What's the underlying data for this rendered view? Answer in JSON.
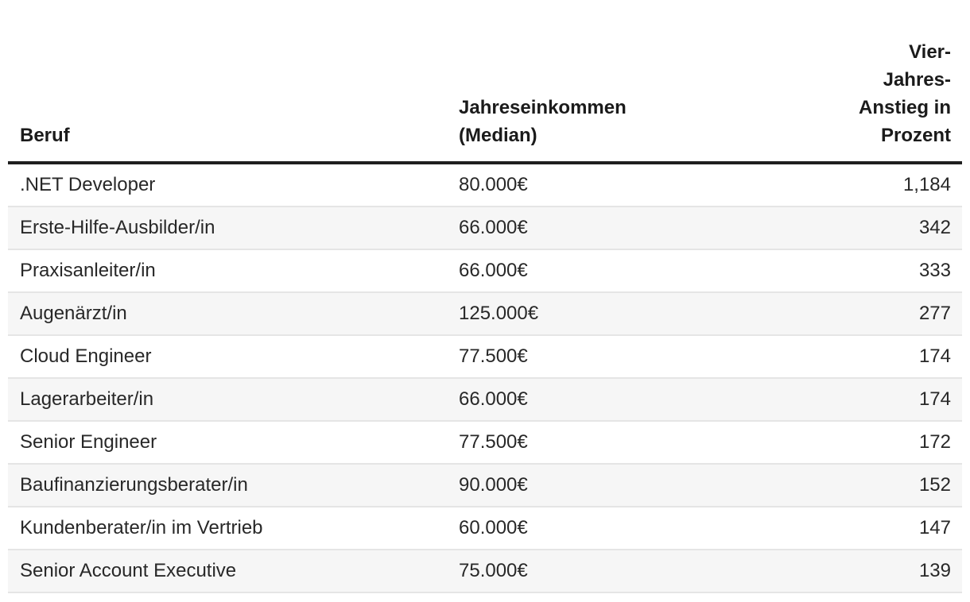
{
  "table": {
    "columns": [
      {
        "id": "beruf",
        "label": "Beruf",
        "align": "left"
      },
      {
        "id": "einkommen",
        "label": "Jahreseinkommen (Median)",
        "align": "left"
      },
      {
        "id": "anstieg",
        "label": "Vier-Jahres-Anstieg in Prozent",
        "align": "right"
      }
    ],
    "rows": [
      {
        "beruf": ".NET Developer",
        "einkommen": "80.000€",
        "anstieg": "1,184"
      },
      {
        "beruf": "Erste-Hilfe-Ausbilder/in",
        "einkommen": "66.000€",
        "anstieg": "342"
      },
      {
        "beruf": "Praxisanleiter/in",
        "einkommen": "66.000€",
        "anstieg": "333"
      },
      {
        "beruf": "Augenärzt/in",
        "einkommen": "125.000€",
        "anstieg": "277"
      },
      {
        "beruf": "Cloud Engineer",
        "einkommen": "77.500€",
        "anstieg": "174"
      },
      {
        "beruf": "Lagerarbeiter/in",
        "einkommen": "66.000€",
        "anstieg": "174"
      },
      {
        "beruf": "Senior Engineer",
        "einkommen": "77.500€",
        "anstieg": "172"
      },
      {
        "beruf": "Baufinanzierungsberater/in",
        "einkommen": "90.000€",
        "anstieg": "152"
      },
      {
        "beruf": "Kundenberater/in im Vertrieb",
        "einkommen": "60.000€",
        "anstieg": "147"
      },
      {
        "beruf": "Senior Account Executive",
        "einkommen": "75.000€",
        "anstieg": "139"
      }
    ]
  },
  "chart_data": {
    "type": "table",
    "columns": [
      "Beruf",
      "Jahreseinkommen (Median)",
      "Vier-Jahres-Anstieg in Prozent"
    ],
    "rows": [
      [
        ".NET Developer",
        "80.000€",
        1184
      ],
      [
        "Erste-Hilfe-Ausbilder/in",
        "66.000€",
        342
      ],
      [
        "Praxisanleiter/in",
        "66.000€",
        333
      ],
      [
        "Augenärzt/in",
        "125.000€",
        277
      ],
      [
        "Cloud Engineer",
        "77.500€",
        174
      ],
      [
        "Lagerarbeiter/in",
        "66.000€",
        174
      ],
      [
        "Senior Engineer",
        "77.500€",
        172
      ],
      [
        "Baufinanzierungsberater/in",
        "90.000€",
        152
      ],
      [
        "Kundenberater/in im Vertrieb",
        "60.000€",
        147
      ],
      [
        "Senior Account Executive",
        "75.000€",
        139
      ]
    ],
    "layout_hints": {
      "stripe_rows": "even",
      "header_rule": true,
      "col_align": [
        "left",
        "left",
        "right"
      ]
    }
  },
  "colors": {
    "background": "#ffffff",
    "header_text": "#1b1b1b",
    "header_rule": "#1f1f1f",
    "body_text": "#282828",
    "row_stripe": "#f6f6f6",
    "row_divider": "#e5e5e5"
  }
}
